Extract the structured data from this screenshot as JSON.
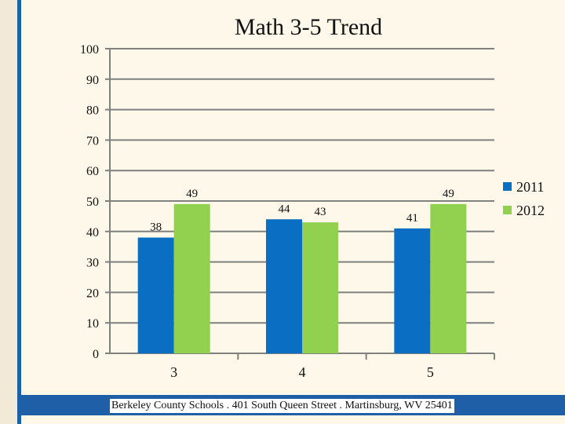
{
  "chart_data": {
    "type": "bar",
    "title": "Math 3-5 Trend",
    "xlabel": "",
    "ylabel": "",
    "categories": [
      "3",
      "4",
      "5"
    ],
    "series": [
      {
        "name": "2011",
        "values": [
          38,
          44,
          41
        ],
        "color": "#0a6fc2"
      },
      {
        "name": "2012",
        "values": [
          49,
          43,
          49
        ],
        "color": "#92d050"
      }
    ],
    "ylim": [
      0,
      100
    ],
    "yticks": [
      0,
      10,
      20,
      30,
      40,
      50,
      60,
      70,
      80,
      90,
      100
    ],
    "grid": true,
    "legend_position": "right"
  },
  "footer": {
    "text": "Berkeley County Schools . 401 South Queen Street . Martinsburg, WV  25401"
  },
  "colors": {
    "accent": "#1f5fa8",
    "background": "#fdf8ea",
    "grid": "#808080"
  }
}
